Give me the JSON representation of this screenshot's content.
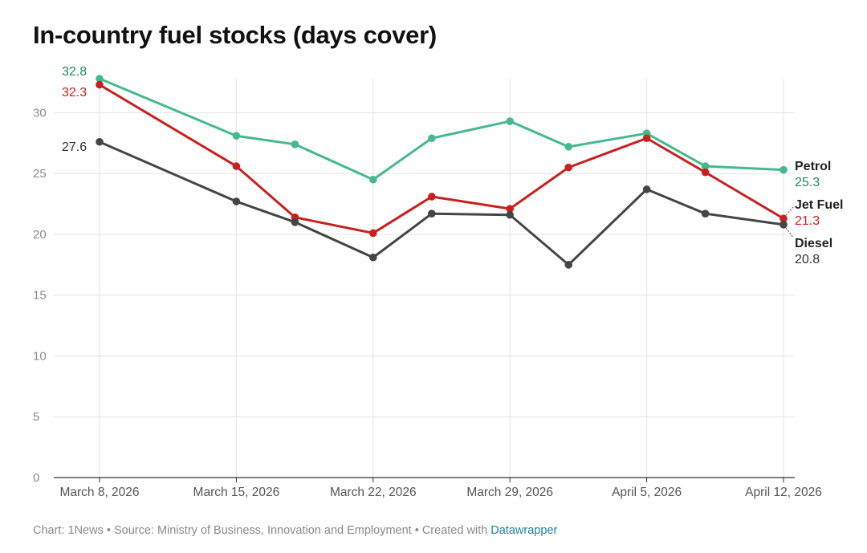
{
  "chart_data": {
    "type": "line",
    "title": "In-country fuel stocks (days cover)",
    "x": [
      "2026-03-08",
      "2026-03-15",
      "2026-03-18",
      "2026-03-22",
      "2026-03-25",
      "2026-03-29",
      "2026-04-01",
      "2026-04-05",
      "2026-04-08",
      "2026-04-12"
    ],
    "x_tick_labels": [
      {
        "date": "2026-03-08",
        "label": "March 8, 2026"
      },
      {
        "date": "2026-03-15",
        "label": "March 15, 2026"
      },
      {
        "date": "2026-03-22",
        "label": "March 22, 2026"
      },
      {
        "date": "2026-03-29",
        "label": "March 29, 2026"
      },
      {
        "date": "2026-04-05",
        "label": "April 5, 2026"
      },
      {
        "date": "2026-04-12",
        "label": "April 12, 2026"
      }
    ],
    "y_ticks": [
      0,
      5,
      10,
      15,
      20,
      25,
      30
    ],
    "ylim": [
      0,
      32.8
    ],
    "xlabel": "",
    "ylabel": "",
    "grid": true,
    "series": [
      {
        "name": "Petrol",
        "color": "#46b98c",
        "label_color": "#1e8a5e",
        "values": [
          32.8,
          28.1,
          27.4,
          24.5,
          27.9,
          29.3,
          27.2,
          28.3,
          25.6,
          25.3
        ],
        "first_label": "32.8",
        "last_label": "25.3"
      },
      {
        "name": "Jet Fuel",
        "color": "#c8201f",
        "label_color": "#c8201f",
        "values": [
          32.3,
          25.6,
          21.4,
          20.1,
          23.1,
          22.1,
          25.5,
          27.9,
          25.1,
          21.3
        ],
        "first_label": "32.3",
        "last_label": "21.3"
      },
      {
        "name": "Diesel",
        "color": "#454545",
        "label_color": "#333333",
        "values": [
          27.6,
          22.7,
          21.0,
          18.1,
          21.7,
          21.6,
          17.5,
          23.7,
          21.7,
          20.8
        ],
        "first_label": "27.6",
        "last_label": "20.8"
      }
    ]
  },
  "footer": {
    "prefix": "Chart: 1News • Source: Ministry of Business, Innovation and Employment • Created with ",
    "link": "Datawrapper"
  }
}
